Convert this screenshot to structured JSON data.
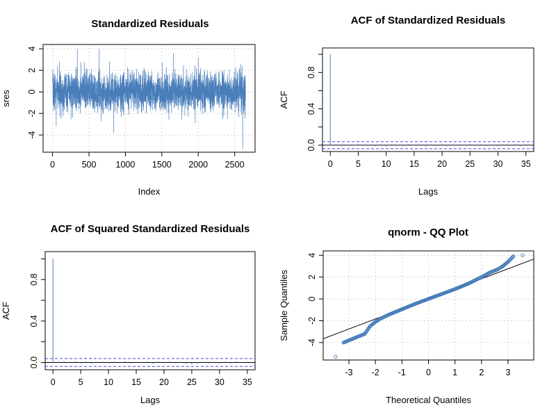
{
  "colors": {
    "series": "#4a7ebb",
    "ci": "#4444dd",
    "grid": "#d3d3d3",
    "refline": "#000000"
  },
  "chart_data": [
    {
      "id": "resid",
      "type": "line",
      "title": "Standardized Residuals",
      "xlabel": "Index",
      "ylabel": "sres",
      "xlim": [
        -130,
        2780
      ],
      "ylim": [
        -5.6,
        4.4
      ],
      "xticks": [
        0,
        500,
        1000,
        1500,
        2000,
        2500
      ],
      "yticks": [
        -4,
        -2,
        0,
        2,
        4
      ],
      "grid": true,
      "n": 2650,
      "x_range": [
        1,
        2650
      ],
      "y_range": [
        -5.3,
        4.1
      ],
      "approx_sd": 0.9,
      "notable_points": [
        {
          "x": 340,
          "y": 4.0
        },
        {
          "x": 640,
          "y": 4.0
        },
        {
          "x": 1660,
          "y": 3.6
        },
        {
          "x": 2000,
          "y": 3.2
        },
        {
          "x": 2580,
          "y": 2.6
        },
        {
          "x": 840,
          "y": -3.8
        },
        {
          "x": 50,
          "y": -3.2
        },
        {
          "x": 2610,
          "y": -5.3
        }
      ]
    },
    {
      "id": "acf",
      "type": "bar",
      "title": "ACF of Standardized Residuals",
      "xlabel": "Lags",
      "ylabel": "ACF",
      "xlim": [
        -1.4,
        36.4
      ],
      "ylim": [
        -0.07,
        1.07
      ],
      "xticks": [
        0,
        5,
        10,
        15,
        20,
        25,
        30,
        35
      ],
      "yticks": [
        0.0,
        0.4,
        0.8
      ],
      "yticks_minor": [
        0.2,
        0.6,
        1.0
      ],
      "conf_band": 0.038,
      "lags": [
        0,
        1,
        2,
        3,
        4,
        5,
        6,
        7,
        8,
        9,
        10,
        11,
        12,
        13,
        14,
        15,
        16,
        17,
        18,
        19,
        20,
        21,
        22,
        23,
        24,
        25,
        26,
        27,
        28,
        29,
        30,
        31,
        32,
        33,
        34,
        35
      ],
      "values": [
        1.0,
        0.01,
        -0.01,
        0.005,
        -0.008,
        0.012,
        -0.01,
        0.006,
        -0.012,
        0.009,
        -0.015,
        0.01,
        0.007,
        -0.01,
        0.011,
        -0.005,
        0.008,
        -0.012,
        0.006,
        -0.009,
        0.01,
        -0.012,
        0.004,
        0.009,
        -0.006,
        0.012,
        -0.01,
        0.008,
        -0.01,
        0.006,
        -0.013,
        0.01,
        -0.008,
        0.012,
        -0.012,
        0.007
      ]
    },
    {
      "id": "acf2",
      "type": "bar",
      "title": "ACF of Squared Standardized Residuals",
      "xlabel": "Lags",
      "ylabel": "ACF",
      "xlim": [
        -1.4,
        36.4
      ],
      "ylim": [
        -0.07,
        1.07
      ],
      "xticks": [
        0,
        5,
        10,
        15,
        20,
        25,
        30,
        35
      ],
      "yticks": [
        0.0,
        0.4,
        0.8
      ],
      "yticks_minor": [
        0.2,
        0.6,
        1.0
      ],
      "conf_band": 0.038,
      "lags": [
        0,
        1,
        2,
        3,
        4,
        5,
        6,
        7,
        8,
        9,
        10,
        11,
        12,
        13,
        14,
        15,
        16,
        17,
        18,
        19,
        20,
        21,
        22,
        23,
        24,
        25,
        26,
        27,
        28,
        29,
        30,
        31,
        32,
        33,
        34,
        35
      ],
      "values": [
        1.0,
        0.008,
        0.012,
        -0.006,
        0.01,
        -0.009,
        0.011,
        -0.012,
        0.006,
        0.009,
        -0.008,
        0.01,
        -0.006,
        0.012,
        -0.01,
        0.008,
        -0.006,
        0.01,
        -0.012,
        0.009,
        -0.007,
        0.011,
        -0.01,
        0.006,
        -0.015,
        -0.018,
        -0.014,
        0.008,
        -0.01,
        0.006,
        -0.012,
        0.009,
        -0.008,
        0.01,
        -0.006,
        0.007
      ]
    },
    {
      "id": "qq",
      "type": "scatter",
      "title": "qnorm - QQ Plot",
      "xlabel": "Theoretical Quantiles",
      "ylabel": "Sample Quantiles",
      "xlim": [
        -3.97,
        3.97
      ],
      "ylim": [
        -5.6,
        4.4
      ],
      "xticks": [
        -3,
        -2,
        -1,
        0,
        1,
        2,
        3
      ],
      "yticks": [
        -4,
        -2,
        0,
        2,
        4
      ],
      "grid": true,
      "n": 2650,
      "reference_line": {
        "intercept": 0.0,
        "slope": 0.92
      },
      "curve_points": [
        {
          "x": -3.5,
          "y": -5.3
        },
        {
          "x": -3.2,
          "y": -4.0
        },
        {
          "x": -3.0,
          "y": -3.8
        },
        {
          "x": -2.8,
          "y": -3.6
        },
        {
          "x": -2.6,
          "y": -3.4
        },
        {
          "x": -2.4,
          "y": -3.2
        },
        {
          "x": -2.2,
          "y": -2.5
        },
        {
          "x": -2.0,
          "y": -2.1
        },
        {
          "x": -1.8,
          "y": -1.8
        },
        {
          "x": -1.5,
          "y": -1.45
        },
        {
          "x": -1.0,
          "y": -0.95
        },
        {
          "x": -0.5,
          "y": -0.45
        },
        {
          "x": 0.0,
          "y": 0.0
        },
        {
          "x": 0.5,
          "y": 0.45
        },
        {
          "x": 1.0,
          "y": 0.9
        },
        {
          "x": 1.5,
          "y": 1.4
        },
        {
          "x": 2.0,
          "y": 2.0
        },
        {
          "x": 2.3,
          "y": 2.4
        },
        {
          "x": 2.6,
          "y": 2.7
        },
        {
          "x": 2.8,
          "y": 3.0
        },
        {
          "x": 3.0,
          "y": 3.4
        },
        {
          "x": 3.2,
          "y": 3.9
        },
        {
          "x": 3.55,
          "y": 4.0
        }
      ]
    }
  ]
}
